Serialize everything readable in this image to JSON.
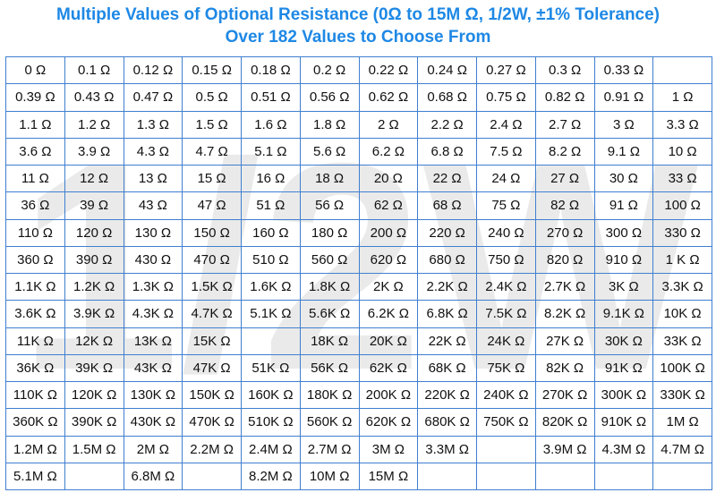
{
  "header": {
    "title_line1": "Multiple Values of Optional Resistance (0Ω to 15M Ω, 1/2W, ±1% Tolerance)",
    "title_line2": "Over 182 Values to Choose From"
  },
  "watermark_text": "1/2W",
  "colors": {
    "title": "#1e88e5",
    "grid_border": "#3f7fd0",
    "watermark": "#d9d9d9"
  },
  "table": {
    "rows": [
      [
        "0 Ω",
        "0.1 Ω",
        "0.12 Ω",
        "0.15 Ω",
        "0.18 Ω",
        "0.2 Ω",
        "0.22 Ω",
        "0.24 Ω",
        "0.27 Ω",
        "0.3 Ω",
        "0.33 Ω",
        ""
      ],
      [
        "0.39 Ω",
        "0.43 Ω",
        "0.47 Ω",
        "0.5 Ω",
        "0.51 Ω",
        "0.56 Ω",
        "0.62 Ω",
        "0.68 Ω",
        "0.75 Ω",
        "0.82 Ω",
        "0.91 Ω",
        "1 Ω"
      ],
      [
        "1.1 Ω",
        "1.2 Ω",
        "1.3 Ω",
        "1.5 Ω",
        "1.6 Ω",
        "1.8 Ω",
        "2 Ω",
        "2.2 Ω",
        "2.4 Ω",
        "2.7 Ω",
        "3 Ω",
        "3.3 Ω"
      ],
      [
        "3.6 Ω",
        "3.9 Ω",
        "4.3 Ω",
        "4.7 Ω",
        "5.1 Ω",
        "5.6 Ω",
        "6.2 Ω",
        "6.8 Ω",
        "7.5 Ω",
        "8.2 Ω",
        "9.1 Ω",
        "10 Ω"
      ],
      [
        "11 Ω",
        "12 Ω",
        "13 Ω",
        "15 Ω",
        "16 Ω",
        "18 Ω",
        "20 Ω",
        "22 Ω",
        "24 Ω",
        "27 Ω",
        "30 Ω",
        "33 Ω"
      ],
      [
        "36 Ω",
        "39 Ω",
        "43 Ω",
        "47 Ω",
        "51 Ω",
        "56 Ω",
        "62 Ω",
        "68 Ω",
        "75 Ω",
        "82 Ω",
        "91 Ω",
        "100 Ω"
      ],
      [
        "110 Ω",
        "120 Ω",
        "130 Ω",
        "150 Ω",
        "160 Ω",
        "180 Ω",
        "200 Ω",
        "220 Ω",
        "240 Ω",
        "270 Ω",
        "300 Ω",
        "330 Ω"
      ],
      [
        "360 Ω",
        "390 Ω",
        "430 Ω",
        "470 Ω",
        "510 Ω",
        "560 Ω",
        "620 Ω",
        "680 Ω",
        "750 Ω",
        "820 Ω",
        "910 Ω",
        "1 K Ω"
      ],
      [
        "1.1K Ω",
        "1.2K Ω",
        "1.3K Ω",
        "1.5K Ω",
        "1.6K Ω",
        "1.8K Ω",
        "2K Ω",
        "2.2K Ω",
        "2.4K Ω",
        "2.7K Ω",
        "3K Ω",
        "3.3K Ω"
      ],
      [
        "3.6K Ω",
        "3.9K Ω",
        "4.3K Ω",
        "4.7K Ω",
        "5.1K Ω",
        "5.6K Ω",
        "6.2K Ω",
        "6.8K Ω",
        "7.5K Ω",
        "8.2K Ω",
        "9.1K Ω",
        "10K Ω"
      ],
      [
        "11K Ω",
        "12K Ω",
        "13K Ω",
        "15K Ω",
        "",
        "18K Ω",
        "20K Ω",
        "22K Ω",
        "24K Ω",
        "27K Ω",
        "30K Ω",
        "33K Ω"
      ],
      [
        "36K Ω",
        "39K Ω",
        "43K Ω",
        "47K Ω",
        "51K Ω",
        "56K Ω",
        "62K Ω",
        "68K Ω",
        "75K Ω",
        "82K Ω",
        "91K Ω",
        "100K Ω"
      ],
      [
        "110K Ω",
        "120K Ω",
        "130K Ω",
        "150K Ω",
        "160K Ω",
        "180K Ω",
        "200K Ω",
        "220K Ω",
        "240K Ω",
        "270K Ω",
        "300K Ω",
        "330K Ω"
      ],
      [
        "360K Ω",
        "390K Ω",
        "430K Ω",
        "470K Ω",
        "510K Ω",
        "560K Ω",
        "620K Ω",
        "680K Ω",
        "750K Ω",
        "820K Ω",
        "910K Ω",
        "1M Ω"
      ],
      [
        "1.2M Ω",
        "1.5M Ω",
        "2M Ω",
        "2.2M Ω",
        "2.4M Ω",
        "2.7M Ω",
        "3M Ω",
        "3.3M Ω",
        "",
        "3.9M Ω",
        "4.3M Ω",
        "4.7M Ω"
      ],
      [
        "5.1M Ω",
        "",
        "6.8M Ω",
        "",
        "8.2M Ω",
        "10M Ω",
        "15M Ω",
        "",
        "",
        "",
        "",
        ""
      ]
    ]
  }
}
